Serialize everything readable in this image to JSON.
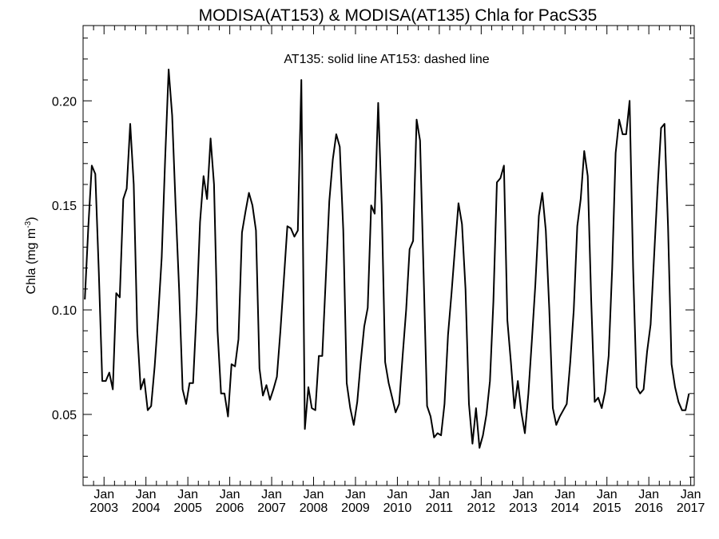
{
  "chart_data": {
    "type": "line",
    "title": "MODISA(AT153) & MODISA(AT135)  Chla for PacS35",
    "ylabel_main": "Chla (mg m",
    "ylabel_sup": "-3",
    "ylabel_close": ")",
    "annotation": "AT135: solid line   AT153: dashed line",
    "ylim": [
      0.016,
      0.236
    ],
    "xlim": [
      "2002-07-01",
      "2017-02-01"
    ],
    "yticks": [
      {
        "value": 0.05,
        "label": "0.05"
      },
      {
        "value": 0.1,
        "label": "0.10"
      },
      {
        "value": 0.15,
        "label": "0.15"
      },
      {
        "value": 0.2,
        "label": "0.20"
      }
    ],
    "xticks": [
      {
        "date": "2003-01-01",
        "label1": "Jan",
        "label2": "2003"
      },
      {
        "date": "2004-01-01",
        "label1": "Jan",
        "label2": "2004"
      },
      {
        "date": "2005-01-01",
        "label1": "Jan",
        "label2": "2005"
      },
      {
        "date": "2006-01-01",
        "label1": "Jan",
        "label2": "2006"
      },
      {
        "date": "2007-01-01",
        "label1": "Jan",
        "label2": "2007"
      },
      {
        "date": "2008-01-01",
        "label1": "Jan",
        "label2": "2008"
      },
      {
        "date": "2009-01-01",
        "label1": "Jan",
        "label2": "2009"
      },
      {
        "date": "2010-01-01",
        "label1": "Jan",
        "label2": "2010"
      },
      {
        "date": "2011-01-01",
        "label1": "Jan",
        "label2": "2011"
      },
      {
        "date": "2012-01-01",
        "label1": "Jan",
        "label2": "2012"
      },
      {
        "date": "2013-01-01",
        "label1": "Jan",
        "label2": "2013"
      },
      {
        "date": "2014-01-01",
        "label1": "Jan",
        "label2": "2014"
      },
      {
        "date": "2015-01-01",
        "label1": "Jan",
        "label2": "2015"
      },
      {
        "date": "2016-01-01",
        "label1": "Jan",
        "label2": "2016"
      },
      {
        "date": "2017-01-01",
        "label1": "Jan",
        "label2": "2017"
      }
    ],
    "series": [
      {
        "style": "solid",
        "color": "#000000",
        "start": "2002-07",
        "values": [
          0.105,
          0.14,
          0.169,
          0.165,
          0.118,
          0.066,
          0.066,
          0.07,
          0.062,
          0.108,
          0.106,
          0.153,
          0.158,
          0.189,
          0.16,
          0.09,
          0.062,
          0.067,
          0.052,
          0.054,
          0.073,
          0.097,
          0.125,
          0.172,
          0.215,
          0.193,
          0.15,
          0.11,
          0.062,
          0.055,
          0.065,
          0.065,
          0.1,
          0.142,
          0.164,
          0.153,
          0.182,
          0.16,
          0.09,
          0.06,
          0.06,
          0.049,
          0.074,
          0.073,
          0.086,
          0.137,
          0.147,
          0.156,
          0.15,
          0.138,
          0.072,
          0.059,
          0.064,
          0.057,
          0.062,
          0.068,
          0.09,
          0.115,
          0.14,
          0.139,
          0.135,
          0.138,
          0.21,
          0.043,
          0.063,
          0.053,
          0.052,
          0.078,
          0.078,
          0.115,
          0.152,
          0.172,
          0.184,
          0.178,
          0.138,
          0.065,
          0.053,
          0.045,
          0.056,
          0.075,
          0.092,
          0.101,
          0.15,
          0.146,
          0.199,
          0.15,
          0.075,
          0.065,
          0.058,
          0.051,
          0.055,
          0.078,
          0.1,
          0.129,
          0.133,
          0.191,
          0.181,
          0.118,
          0.054,
          0.049,
          0.039,
          0.041,
          0.04,
          0.055,
          0.088,
          0.108,
          0.13,
          0.151,
          0.141,
          0.11,
          0.055,
          0.036,
          0.053,
          0.034,
          0.04,
          0.05,
          0.066,
          0.104,
          0.161,
          0.163,
          0.169,
          0.095,
          0.075,
          0.053,
          0.066,
          0.051,
          0.041,
          0.06,
          0.085,
          0.112,
          0.145,
          0.156,
          0.138,
          0.1,
          0.053,
          0.045,
          0.049,
          0.052,
          0.055,
          0.075,
          0.1,
          0.14,
          0.153,
          0.176,
          0.164,
          0.105,
          0.056,
          0.058,
          0.053,
          0.061,
          0.078,
          0.12,
          0.175,
          0.191,
          0.184,
          0.184,
          0.2,
          0.12,
          0.063,
          0.06,
          0.062,
          0.08,
          0.093,
          0.125,
          0.158,
          0.187,
          0.189,
          0.14,
          0.074,
          0.063,
          0.056,
          0.052,
          0.052,
          0.06
        ]
      }
    ]
  }
}
